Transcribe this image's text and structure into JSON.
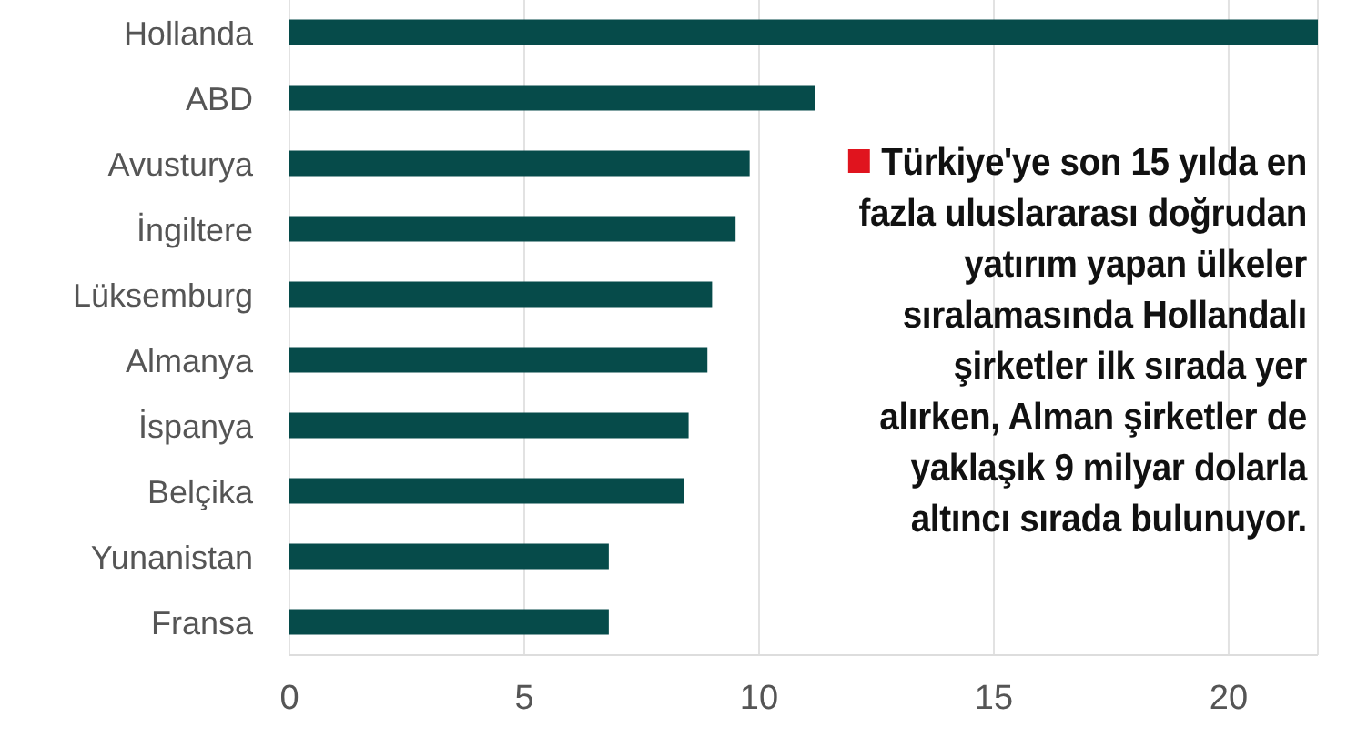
{
  "chart_data": {
    "type": "bar",
    "orientation": "horizontal",
    "categories": [
      "Hollanda",
      "ABD",
      "Avusturya",
      "İngiltere",
      "Lüksemburg",
      "Almanya",
      "İspanya",
      "Belçika",
      "Yunanistan",
      "Fransa"
    ],
    "values": [
      21.9,
      11.2,
      9.8,
      9.5,
      9.0,
      8.9,
      8.5,
      8.4,
      6.8,
      6.8
    ],
    "color": "#064b4a",
    "xlim": [
      0,
      21.9
    ],
    "xticks": [
      0,
      5,
      10,
      15,
      20
    ],
    "grid": "x",
    "annotations": [
      "Türkiye'ye son 15 yılda en fazla uluslararası doğrudan yatırım yapan ülkeler sıralamasında Hollandalı şirketler ilk sırada yer alırken, Alman şirketler de yaklaşık 9 milyar dolarla altıncı sırada bulunuyor."
    ]
  }
}
